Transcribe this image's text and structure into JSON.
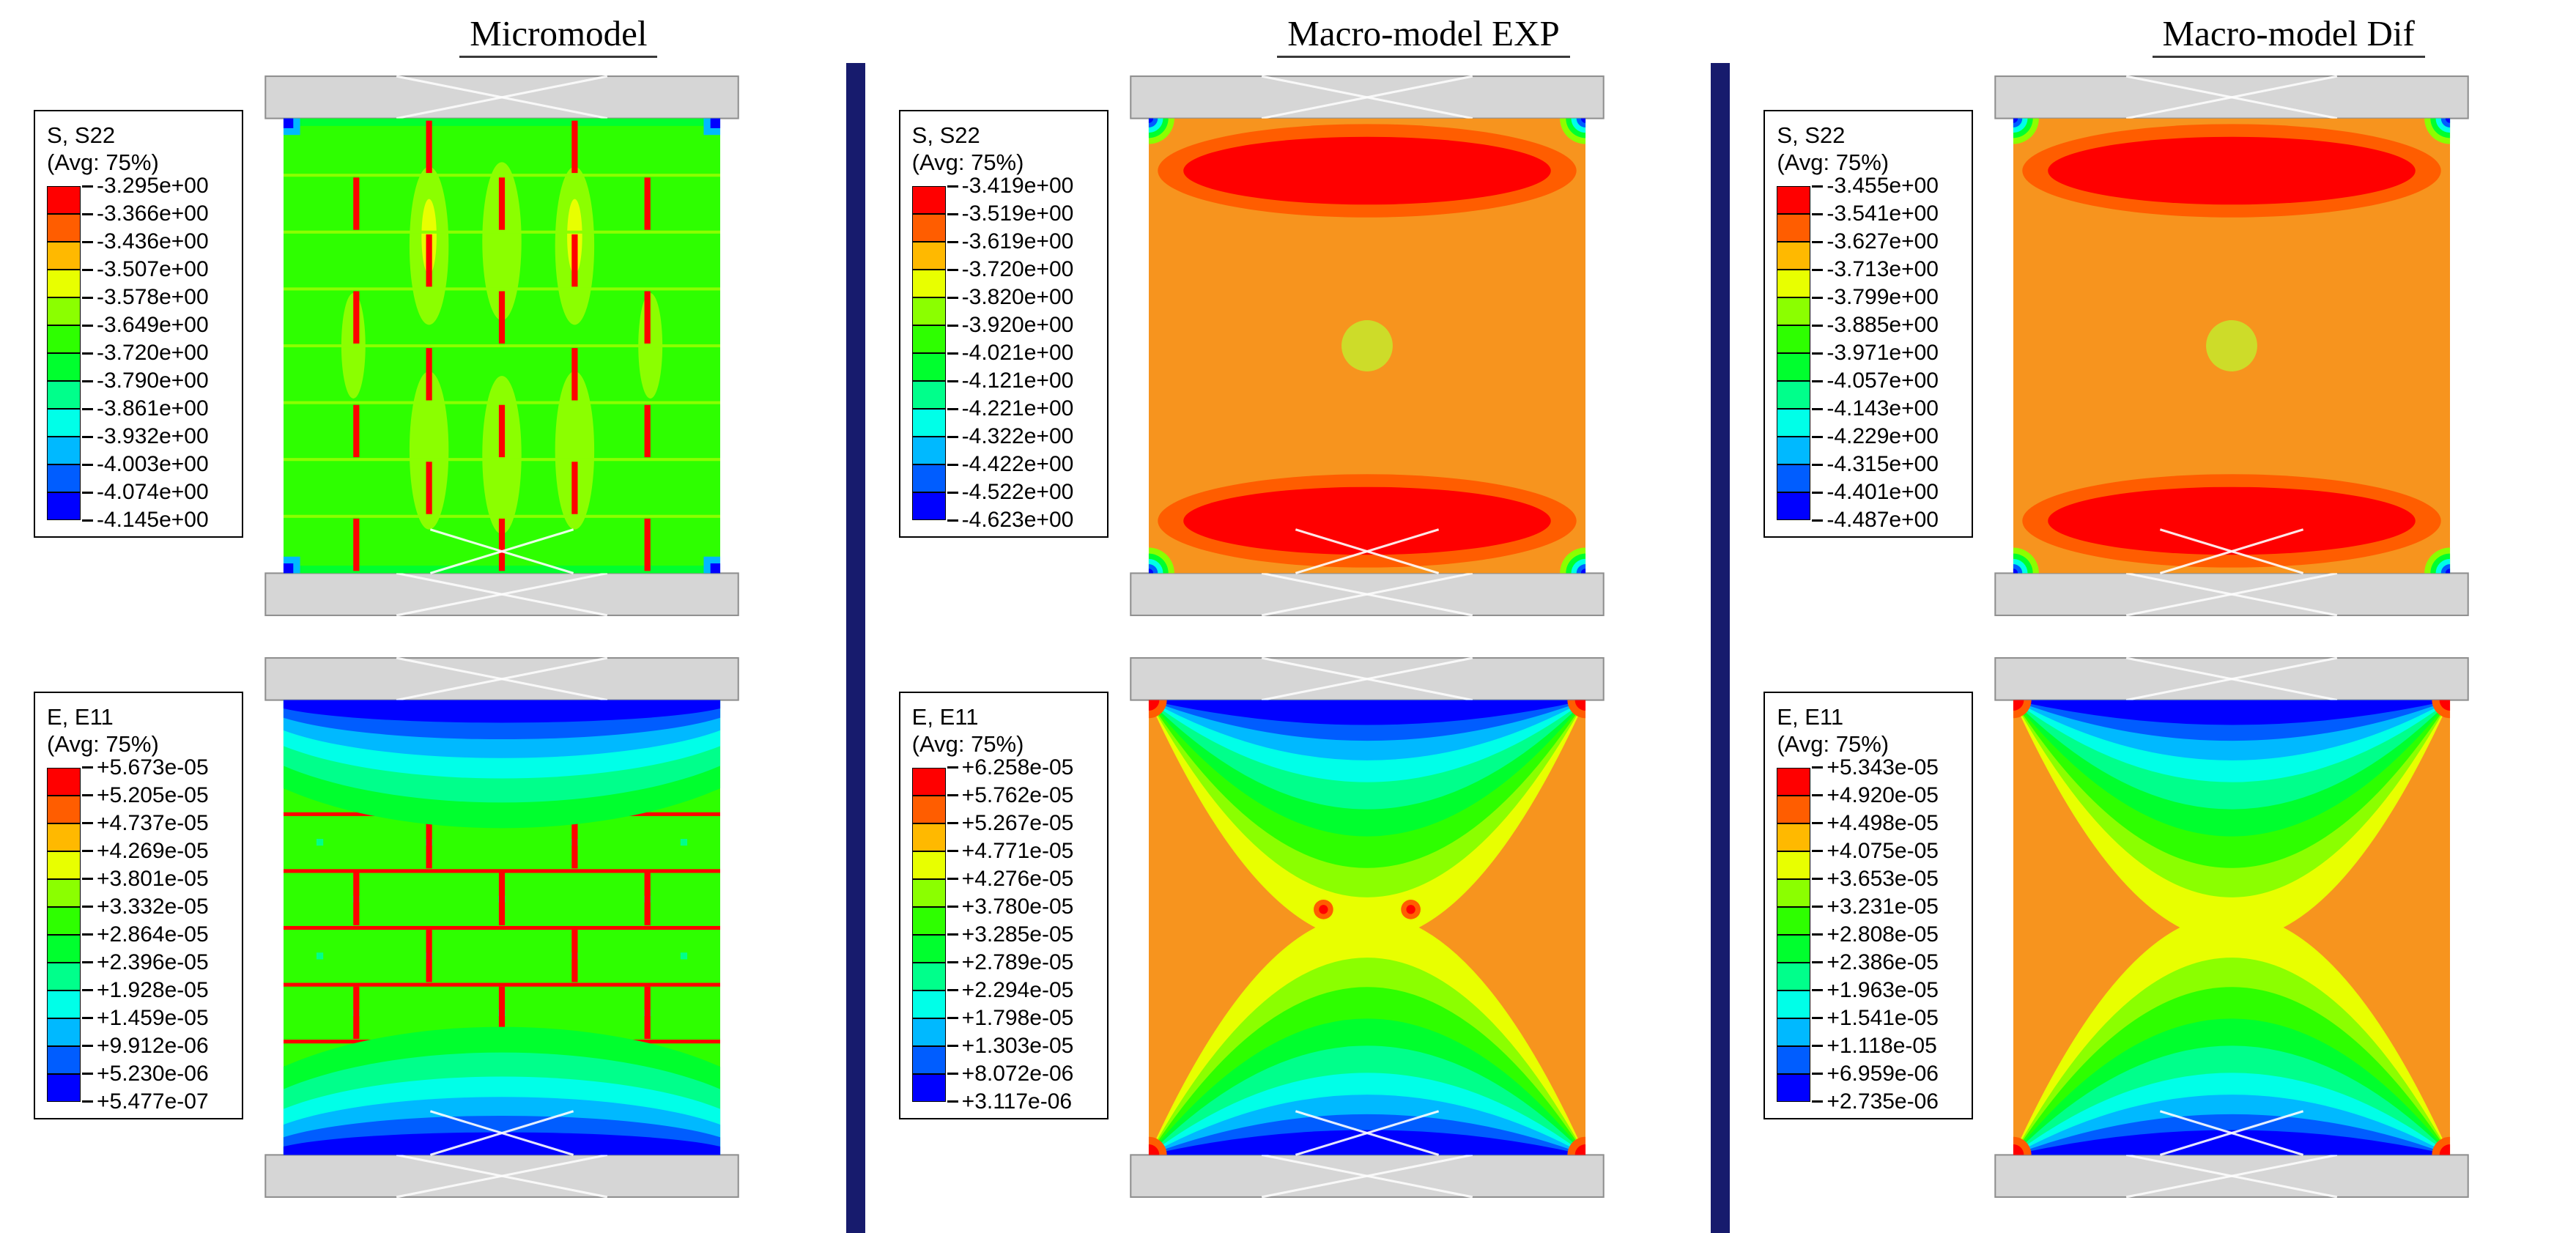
{
  "palette": {
    "bands": [
      "#ff0000",
      "#ff5d00",
      "#ffb900",
      "#e8ff00",
      "#8bff00",
      "#2eff00",
      "#00ff2e",
      "#00ff8b",
      "#00ffe8",
      "#00b9ff",
      "#005dff",
      "#0000ff"
    ],
    "field_orange": "#f7941e",
    "center_dot": "#cddc29",
    "plate_gray": "#d6d6d6",
    "plate_edge": "#8f8f8f",
    "divider_navy": "#171b6d"
  },
  "columns": [
    {
      "title": "Micromodel"
    },
    {
      "title": "Macro-model EXP"
    },
    {
      "title": "Macro-model Dif"
    }
  ],
  "panels": [
    {
      "variant": "micro-stress",
      "legend": {
        "title": "S, S22",
        "avg": "(Avg: 75%)",
        "values": [
          "-3.295e+00",
          "-3.366e+00",
          "-3.436e+00",
          "-3.507e+00",
          "-3.578e+00",
          "-3.649e+00",
          "-3.720e+00",
          "-3.790e+00",
          "-3.861e+00",
          "-3.932e+00",
          "-4.003e+00",
          "-4.074e+00",
          "-4.145e+00"
        ]
      }
    },
    {
      "variant": "macro-stress-exp",
      "legend": {
        "title": "S, S22",
        "avg": "(Avg: 75%)",
        "values": [
          "-3.419e+00",
          "-3.519e+00",
          "-3.619e+00",
          "-3.720e+00",
          "-3.820e+00",
          "-3.920e+00",
          "-4.021e+00",
          "-4.121e+00",
          "-4.221e+00",
          "-4.322e+00",
          "-4.422e+00",
          "-4.522e+00",
          "-4.623e+00"
        ]
      }
    },
    {
      "variant": "macro-stress-dif",
      "legend": {
        "title": "S, S22",
        "avg": "(Avg: 75%)",
        "values": [
          "-3.455e+00",
          "-3.541e+00",
          "-3.627e+00",
          "-3.713e+00",
          "-3.799e+00",
          "-3.885e+00",
          "-3.971e+00",
          "-4.057e+00",
          "-4.143e+00",
          "-4.229e+00",
          "-4.315e+00",
          "-4.401e+00",
          "-4.487e+00"
        ]
      }
    },
    {
      "variant": "micro-strain",
      "legend": {
        "title": "E, E11",
        "avg": "(Avg: 75%)",
        "values": [
          "+5.673e-05",
          "+5.205e-05",
          "+4.737e-05",
          "+4.269e-05",
          "+3.801e-05",
          "+3.332e-05",
          "+2.864e-05",
          "+2.396e-05",
          "+1.928e-05",
          "+1.459e-05",
          "+9.912e-06",
          "+5.230e-06",
          "+5.477e-07"
        ]
      }
    },
    {
      "variant": "macro-strain-exp",
      "legend": {
        "title": "E, E11",
        "avg": "(Avg: 75%)",
        "values": [
          "+6.258e-05",
          "+5.762e-05",
          "+5.267e-05",
          "+4.771e-05",
          "+4.276e-05",
          "+3.780e-05",
          "+3.285e-05",
          "+2.789e-05",
          "+2.294e-05",
          "+1.798e-05",
          "+1.303e-05",
          "+8.072e-06",
          "+3.117e-06"
        ]
      }
    },
    {
      "variant": "macro-strain-dif",
      "legend": {
        "title": "E, E11",
        "avg": "(Avg: 75%)",
        "values": [
          "+5.343e-05",
          "+4.920e-05",
          "+4.498e-05",
          "+4.075e-05",
          "+3.653e-05",
          "+3.231e-05",
          "+2.808e-05",
          "+2.386e-05",
          "+1.963e-05",
          "+1.541e-05",
          "+1.118e-05",
          "+6.959e-06",
          "+2.735e-06"
        ]
      }
    }
  ],
  "chart_data": [
    {
      "type": "heatmap",
      "panel": "top-left",
      "model": "Micromodel",
      "field": "S, S22",
      "averaging": "(Avg: 75%)",
      "colormap": "rainbow red(max) to blue(min)",
      "max": "-3.295e+00",
      "min": "-4.145e+00",
      "levels": [
        "-3.295e+00",
        "-3.366e+00",
        "-3.436e+00",
        "-3.507e+00",
        "-3.578e+00",
        "-3.649e+00",
        "-3.720e+00",
        "-3.790e+00",
        "-3.861e+00",
        "-3.932e+00",
        "-4.003e+00",
        "-4.074e+00",
        "-4.145e+00"
      ]
    },
    {
      "type": "heatmap",
      "panel": "top-middle",
      "model": "Macro-model EXP",
      "field": "S, S22",
      "averaging": "(Avg: 75%)",
      "colormap": "rainbow red(max) to blue(min)",
      "max": "-3.419e+00",
      "min": "-4.623e+00",
      "levels": [
        "-3.419e+00",
        "-3.519e+00",
        "-3.619e+00",
        "-3.720e+00",
        "-3.820e+00",
        "-3.920e+00",
        "-4.021e+00",
        "-4.121e+00",
        "-4.221e+00",
        "-4.322e+00",
        "-4.422e+00",
        "-4.522e+00",
        "-4.623e+00"
      ]
    },
    {
      "type": "heatmap",
      "panel": "top-right",
      "model": "Macro-model Dif",
      "field": "S, S22",
      "averaging": "(Avg: 75%)",
      "colormap": "rainbow red(max) to blue(min)",
      "max": "-3.455e+00",
      "min": "-4.487e+00",
      "levels": [
        "-3.455e+00",
        "-3.541e+00",
        "-3.627e+00",
        "-3.713e+00",
        "-3.799e+00",
        "-3.885e+00",
        "-3.971e+00",
        "-4.057e+00",
        "-4.143e+00",
        "-4.229e+00",
        "-4.315e+00",
        "-4.401e+00",
        "-4.487e+00"
      ]
    },
    {
      "type": "heatmap",
      "panel": "bottom-left",
      "model": "Micromodel",
      "field": "E, E11",
      "averaging": "(Avg: 75%)",
      "colormap": "rainbow red(max) to blue(min)",
      "max": "+5.673e-05",
      "min": "+5.477e-07",
      "levels": [
        "+5.673e-05",
        "+5.205e-05",
        "+4.737e-05",
        "+4.269e-05",
        "+3.801e-05",
        "+3.332e-05",
        "+2.864e-05",
        "+2.396e-05",
        "+1.928e-05",
        "+1.459e-05",
        "+9.912e-06",
        "+5.230e-06",
        "+5.477e-07"
      ]
    },
    {
      "type": "heatmap",
      "panel": "bottom-middle",
      "model": "Macro-model EXP",
      "field": "E, E11",
      "averaging": "(Avg: 75%)",
      "colormap": "rainbow red(max) to blue(min)",
      "max": "+6.258e-05",
      "min": "+3.117e-06",
      "levels": [
        "+6.258e-05",
        "+5.762e-05",
        "+5.267e-05",
        "+4.771e-05",
        "+4.276e-05",
        "+3.780e-05",
        "+3.285e-05",
        "+2.789e-05",
        "+2.294e-05",
        "+1.798e-05",
        "+1.303e-05",
        "+8.072e-06",
        "+3.117e-06"
      ]
    },
    {
      "type": "heatmap",
      "panel": "bottom-right",
      "model": "Macro-model Dif",
      "field": "E, E11",
      "averaging": "(Avg: 75%)",
      "colormap": "rainbow red(max) to blue(min)",
      "max": "+5.343e-05",
      "min": "+2.735e-06",
      "levels": [
        "+5.343e-05",
        "+4.920e-05",
        "+4.498e-05",
        "+4.075e-05",
        "+3.653e-05",
        "+3.231e-05",
        "+2.808e-05",
        "+2.386e-05",
        "+1.963e-05",
        "+1.541e-05",
        "+1.118e-05",
        "+6.959e-06",
        "+2.735e-06"
      ]
    }
  ]
}
